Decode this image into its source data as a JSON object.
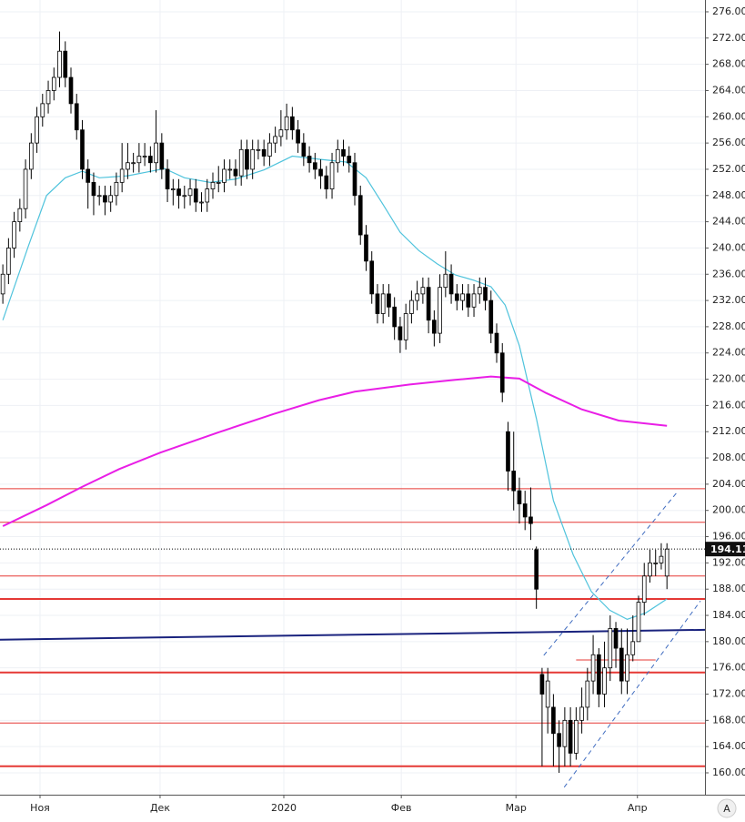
{
  "chart_data": {
    "type": "candlestick",
    "up_color": "#ffffff",
    "down_color": "#000000",
    "outline_color": "#000000",
    "open": [
      233,
      236,
      240,
      244,
      246,
      252,
      256,
      260,
      262,
      264,
      266,
      270,
      266,
      262,
      258,
      252,
      250,
      248,
      248,
      247,
      248,
      250,
      252,
      253,
      253,
      254,
      254,
      253,
      256,
      252,
      249,
      249,
      248,
      248,
      249,
      247,
      247,
      249,
      250,
      250,
      252,
      252,
      251,
      255,
      252,
      255,
      255,
      254,
      256,
      257,
      258,
      260,
      258,
      256,
      254,
      253,
      252,
      251,
      249,
      253,
      255,
      254,
      253,
      248,
      242,
      238,
      233,
      230,
      233,
      231,
      228,
      226,
      230,
      232,
      233,
      234,
      229,
      227,
      234,
      236,
      233,
      232,
      233,
      231,
      233,
      234,
      232,
      227,
      224,
      212,
      206,
      203,
      201,
      199,
      194,
      175,
      170,
      170,
      166,
      164,
      168,
      163,
      168,
      170,
      174,
      178,
      172,
      176,
      182,
      179,
      174,
      178,
      180,
      186,
      190,
      192,
      192,
      190
    ],
    "high": [
      237.5,
      241.5,
      245.5,
      247.5,
      253.5,
      257.5,
      261.5,
      263.5,
      265.5,
      267.5,
      273,
      271.5,
      267.5,
      263.5,
      259.5,
      253.5,
      251.5,
      249.5,
      249.5,
      249.5,
      251.5,
      256,
      256,
      254.5,
      256,
      256,
      255.5,
      261,
      257.5,
      253.5,
      250.5,
      250.5,
      249.5,
      250.5,
      250.5,
      248.5,
      250.5,
      251.5,
      252.5,
      253.5,
      253.5,
      253.5,
      256.5,
      256.5,
      256.5,
      256.5,
      256.5,
      257.5,
      258.5,
      261,
      262,
      261.5,
      259.5,
      257.5,
      255.5,
      254.5,
      253.5,
      252.5,
      254.5,
      256.5,
      256.5,
      255.5,
      254.5,
      249.5,
      243.5,
      239.5,
      234.5,
      234.5,
      234.5,
      232.5,
      229.5,
      231.5,
      233.5,
      235,
      235.5,
      235.5,
      230.5,
      236,
      239.5,
      237.5,
      234.5,
      234.5,
      234.5,
      234.5,
      235.5,
      235.5,
      233.5,
      228.5,
      225.5,
      213.5,
      212,
      205,
      203,
      203.5,
      194.5,
      176,
      176,
      172,
      168,
      170,
      170,
      170,
      173,
      176,
      181,
      179,
      180,
      184,
      183,
      182,
      182,
      184,
      187,
      192,
      194,
      194,
      195,
      195
    ],
    "low": [
      231.5,
      234.5,
      238.5,
      242.5,
      244.5,
      250.5,
      254.5,
      258.5,
      260.5,
      262.5,
      264.5,
      264.5,
      260.5,
      256.5,
      250.5,
      246,
      245,
      246.5,
      245,
      245.5,
      246.5,
      248.5,
      250.5,
      251.5,
      251.5,
      252.5,
      251.5,
      251.5,
      250.5,
      247,
      246.5,
      246,
      246,
      246.5,
      245.5,
      245.5,
      245.5,
      247.5,
      248.5,
      248.5,
      250.5,
      249.5,
      249.5,
      250.5,
      250.5,
      253.5,
      252.5,
      252.5,
      254.5,
      255.5,
      256.5,
      256.5,
      254.5,
      252.5,
      251.5,
      250.5,
      249,
      247.5,
      247.5,
      251.5,
      252.5,
      251.5,
      246.5,
      240.5,
      236.5,
      231.5,
      228.5,
      228.5,
      229.5,
      226,
      224,
      224.5,
      228.5,
      230.5,
      231.5,
      227,
      225,
      225.5,
      232.5,
      231.5,
      230.5,
      230.5,
      229.5,
      229.5,
      231.5,
      230.5,
      225.5,
      222.5,
      216.5,
      203,
      200,
      198,
      197,
      195.5,
      185,
      161,
      166,
      161,
      160,
      161,
      161,
      162,
      166,
      168,
      172,
      170,
      170,
      174,
      176,
      172,
      172,
      177,
      180,
      184,
      189,
      190,
      191,
      188
    ],
    "close": [
      236,
      240,
      244,
      246,
      252,
      256,
      260,
      262,
      264,
      266,
      270,
      266,
      262,
      258,
      252,
      250,
      248,
      248,
      247,
      248,
      250,
      252,
      253,
      253,
      254,
      254,
      253,
      256,
      252,
      249,
      249,
      248,
      248,
      249,
      247,
      247,
      249,
      250,
      250,
      252,
      252,
      251,
      255,
      252,
      255,
      255,
      254,
      256,
      257,
      258,
      260,
      258,
      256,
      254,
      253,
      252,
      251,
      249,
      253,
      255,
      254,
      253,
      248,
      242,
      238,
      233,
      230,
      233,
      231,
      228,
      226,
      230,
      232,
      233,
      234,
      229,
      227,
      234,
      236,
      233,
      232,
      233,
      231,
      233,
      234,
      232,
      227,
      224,
      218,
      206,
      203,
      201,
      199,
      198,
      188,
      172,
      174,
      166,
      164,
      168,
      163,
      168,
      170,
      174,
      178,
      172,
      176,
      182,
      179,
      174,
      178,
      180,
      186,
      190,
      192,
      192,
      193,
      194.11
    ],
    "lines": [
      {
        "color": "#4fc3dc",
        "width": 1.2,
        "x": [
          0,
          4.5,
          7.7,
          11,
          14,
          17,
          22,
          28.5,
          32,
          36.5,
          41,
          46,
          51,
          56,
          60.5,
          64,
          67,
          70,
          73.3,
          76.5,
          79.7,
          82.9,
          86,
          88.5,
          91,
          94,
          97,
          100.5,
          103.7,
          106.9,
          110,
          113.3,
          117
        ],
        "values": [
          229,
          240.3,
          248,
          250.7,
          251.7,
          250.7,
          251,
          252.1,
          250.7,
          250,
          250.5,
          251.9,
          254,
          253.5,
          253.1,
          250.7,
          246.6,
          242.4,
          239.6,
          237.6,
          235.9,
          235.1,
          234.1,
          231.3,
          225.1,
          214,
          201.5,
          193.2,
          187.6,
          184.8,
          183.4,
          184.4,
          186.5
        ]
      },
      {
        "color": "#e91ee6",
        "width": 2,
        "x": [
          0,
          7.7,
          14,
          20.5,
          27.7,
          38,
          47.7,
          55.7,
          62,
          71.7,
          79.7,
          86,
          91,
          95.7,
          102,
          108.5,
          117
        ],
        "values": [
          197.6,
          200.8,
          203.6,
          206.3,
          208.8,
          211.9,
          214.7,
          216.8,
          218.1,
          219.2,
          219.9,
          220.4,
          220.1,
          217.9,
          215.4,
          213.7,
          212.9
        ]
      },
      {
        "color": "#1a237e",
        "width": 2,
        "x": [
          -0.5,
          123.7
        ],
        "values": [
          180.3,
          181.8
        ]
      },
      {
        "color": "#3f6cc0",
        "width": 1,
        "dashed": true,
        "x": [
          95.3,
          118.9
        ],
        "values": [
          177.9,
          202.9
        ]
      },
      {
        "color": "#3f6cc0",
        "width": 1,
        "dashed": true,
        "x": [
          98.9,
          122.9
        ],
        "values": [
          157.8,
          186.2
        ]
      },
      {
        "color": "#e53935",
        "width": 1,
        "x": [
          101,
          115
        ],
        "values": [
          177.2,
          177.2
        ]
      }
    ],
    "level_color": "#e53935",
    "levels": [
      {
        "value": 203.3,
        "width": 1
      },
      {
        "value": 198.2,
        "width": 1
      },
      {
        "value": 190,
        "width": 1
      },
      {
        "value": 186.5,
        "width": 2
      },
      {
        "value": 175.3,
        "width": 2
      },
      {
        "value": 167.6,
        "width": 1
      },
      {
        "value": 161,
        "width": 2
      }
    ],
    "xlim": [
      -0.5,
      123.7
    ],
    "xticks": [
      {
        "value": 6.55,
        "label": "Ноя"
      },
      {
        "value": 27.7,
        "label": "Дек"
      },
      {
        "value": 49.5,
        "label": "2020"
      },
      {
        "value": 70.2,
        "label": "Фев"
      },
      {
        "value": 90.4,
        "label": "Мар"
      },
      {
        "value": 111.8,
        "label": "Апр"
      }
    ],
    "ylim": [
      156.67,
      277.8
    ],
    "yticks": [
      {
        "value": 160,
        "label": "160.00"
      },
      {
        "value": 164,
        "label": "164.00"
      },
      {
        "value": 168,
        "label": "168.00"
      },
      {
        "value": 172,
        "label": "172.00"
      },
      {
        "value": 176,
        "label": "176.00"
      },
      {
        "value": 180,
        "label": "180.00"
      },
      {
        "value": 184,
        "label": "184.00"
      },
      {
        "value": 188,
        "label": "188.00"
      },
      {
        "value": 192,
        "label": "192.00"
      },
      {
        "value": 196,
        "label": "196.00"
      },
      {
        "value": 200,
        "label": "200.00"
      },
      {
        "value": 204,
        "label": "204.00"
      },
      {
        "value": 208,
        "label": "208.00"
      },
      {
        "value": 212,
        "label": "212.00"
      },
      {
        "value": 216,
        "label": "216.00"
      },
      {
        "value": 220,
        "label": "220.00"
      },
      {
        "value": 224,
        "label": "224.00"
      },
      {
        "value": 228,
        "label": "228.00"
      },
      {
        "value": 232,
        "label": "232.00"
      },
      {
        "value": 236,
        "label": "236.00"
      },
      {
        "value": 240,
        "label": "240.00"
      },
      {
        "value": 244,
        "label": "244.00"
      },
      {
        "value": 248,
        "label": "248.00"
      },
      {
        "value": 252,
        "label": "252.00"
      },
      {
        "value": 256,
        "label": "256.00"
      },
      {
        "value": 260,
        "label": "260.00"
      },
      {
        "value": 264,
        "label": "264.00"
      },
      {
        "value": 268,
        "label": "268.00"
      },
      {
        "value": 272,
        "label": "272.00"
      },
      {
        "value": 276,
        "label": "276.00"
      }
    ],
    "grid": true,
    "auto_button": "A"
  }
}
